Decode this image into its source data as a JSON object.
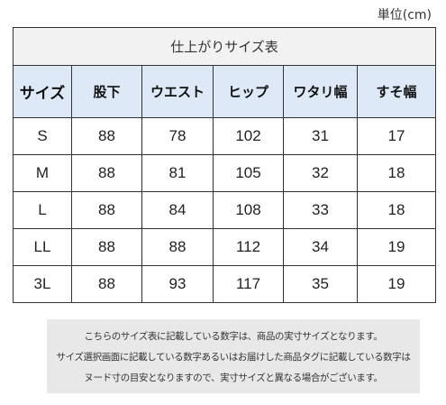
{
  "unit_label": "単位(cm)",
  "table": {
    "title": "仕上がりサイズ表",
    "headers": [
      "サイズ",
      "股下",
      "ウエスト",
      "ヒップ",
      "ワタリ幅",
      "すそ幅"
    ],
    "rows": [
      [
        "S",
        "88",
        "78",
        "102",
        "31",
        "17"
      ],
      [
        "M",
        "88",
        "81",
        "105",
        "32",
        "18"
      ],
      [
        "L",
        "88",
        "84",
        "108",
        "33",
        "18"
      ],
      [
        "LL",
        "88",
        "88",
        "112",
        "34",
        "19"
      ],
      [
        "3L",
        "88",
        "93",
        "117",
        "35",
        "19"
      ]
    ]
  },
  "note": {
    "lines": [
      "こちらのサイズ表に記載している数字は、商品の実寸サイズとなります。",
      "サイズ選択画面に記載している数字あるいはお届けした商品タグに記載している数字は",
      "ヌード寸の目安となりますので、実寸サイズと異なる場合がございます。"
    ]
  }
}
